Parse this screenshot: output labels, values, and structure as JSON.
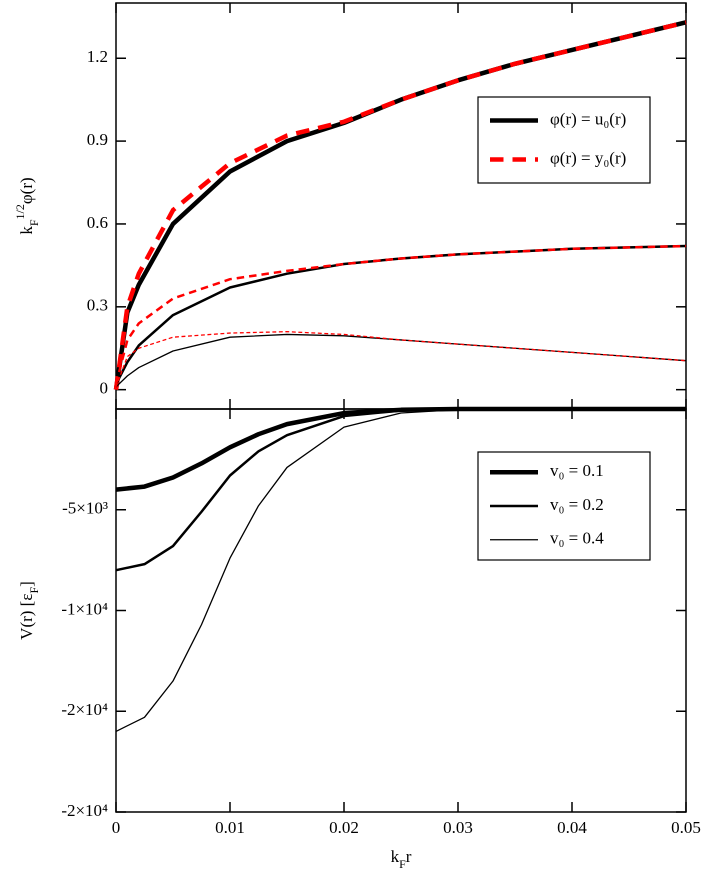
{
  "chart_data": [
    {
      "type": "line",
      "y_label": [
        {
          "text": "k"
        },
        {
          "text": "F",
          "shift": "sub"
        },
        {
          "text": "1/2",
          "shift": "super"
        },
        {
          "text": "φ(r)"
        }
      ],
      "x": [
        0,
        0.001,
        0.002,
        0.005,
        0.01,
        0.015,
        0.02,
        0.025,
        0.03,
        0.035,
        0.04,
        0.045,
        0.05
      ],
      "xlim": [
        0,
        0.05
      ],
      "ylim": [
        -0.07,
        1.4
      ],
      "yticks": [
        0,
        0.3,
        0.6,
        0.9,
        1.2
      ],
      "legend": "upper right",
      "series": [
        {
          "name": "φ(r) = u₀(r)",
          "color": "#000000",
          "width": 4.5,
          "dash": false,
          "values": [
            0,
            0.28,
            0.38,
            0.6,
            0.79,
            0.9,
            0.966,
            1.05,
            1.12,
            1.18,
            1.23,
            1.28,
            1.33
          ]
        },
        {
          "name": "φ(r) = y₀(r)",
          "color": "#ff0000",
          "width": 4.5,
          "dash": true,
          "values": [
            0,
            0.3,
            0.42,
            0.65,
            0.82,
            0.92,
            0.97,
            1.05,
            1.12,
            1.18,
            1.23,
            1.28,
            1.33
          ]
        },
        {
          "color": "#000000",
          "width": 2.5,
          "dash": false,
          "values": [
            0.02,
            0.1,
            0.16,
            0.27,
            0.37,
            0.42,
            0.455,
            0.475,
            0.49,
            0.5,
            0.51,
            0.515,
            0.52
          ]
        },
        {
          "color": "#ff0000",
          "width": 2.5,
          "dash": true,
          "values": [
            0.02,
            0.18,
            0.24,
            0.33,
            0.4,
            0.43,
            0.455,
            0.475,
            0.49,
            0.5,
            0.51,
            0.515,
            0.52
          ]
        },
        {
          "color": "#000000",
          "width": 1.3,
          "dash": false,
          "values": [
            0.01,
            0.05,
            0.08,
            0.14,
            0.19,
            0.2,
            0.195,
            0.18,
            0.165,
            0.15,
            0.135,
            0.12,
            0.105
          ]
        },
        {
          "color": "#ff0000",
          "width": 1.3,
          "dash": true,
          "values": [
            0.01,
            0.12,
            0.15,
            0.19,
            0.205,
            0.21,
            0.2,
            0.18,
            0.165,
            0.15,
            0.135,
            0.12,
            0.105
          ]
        }
      ]
    },
    {
      "type": "line",
      "y_label": [
        {
          "text": "V(r) [ε"
        },
        {
          "text": "F",
          "shift": "sub"
        },
        {
          "text": "]"
        }
      ],
      "x_label": [
        {
          "text": "k"
        },
        {
          "text": "F",
          "shift": "sub"
        },
        {
          "text": "r"
        }
      ],
      "x": [
        0,
        0.0025,
        0.005,
        0.0075,
        0.01,
        0.0125,
        0.015,
        0.02,
        0.025,
        0.03,
        0.035,
        0.04,
        0.05
      ],
      "xlim": [
        0,
        0.05
      ],
      "ylim": [
        -20000,
        0
      ],
      "xticks": [
        0,
        0.01,
        0.02,
        0.03,
        0.04,
        0.05
      ],
      "yticks": [
        {
          "value": -5000,
          "label": "-5×10³"
        },
        {
          "value": -10000,
          "label": "-1×10⁴"
        },
        {
          "value": -15000,
          "label": "-2×10⁴"
        },
        {
          "value": -20000,
          "label": "-2×10⁴"
        }
      ],
      "legend": "upper right",
      "series": [
        {
          "name": "v₀ = 0.1",
          "color": "#000000",
          "width": 4.5,
          "dash": false,
          "values": [
            -4000,
            -3850,
            -3400,
            -2700,
            -1900,
            -1250,
            -750,
            -200,
            -40,
            0,
            0,
            0,
            0
          ]
        },
        {
          "name": "v₀ = 0.2",
          "color": "#000000",
          "width": 2.5,
          "dash": false,
          "values": [
            -8000,
            -7700,
            -6800,
            -5100,
            -3300,
            -2100,
            -1300,
            -350,
            -80,
            -10,
            0,
            0,
            0
          ]
        },
        {
          "name": "v₀ = 0.4",
          "color": "#000000",
          "width": 1.3,
          "dash": false,
          "values": [
            -16000,
            -15300,
            -13500,
            -10700,
            -7400,
            -4800,
            -2900,
            -900,
            -200,
            -30,
            0,
            0,
            0
          ]
        }
      ]
    }
  ]
}
